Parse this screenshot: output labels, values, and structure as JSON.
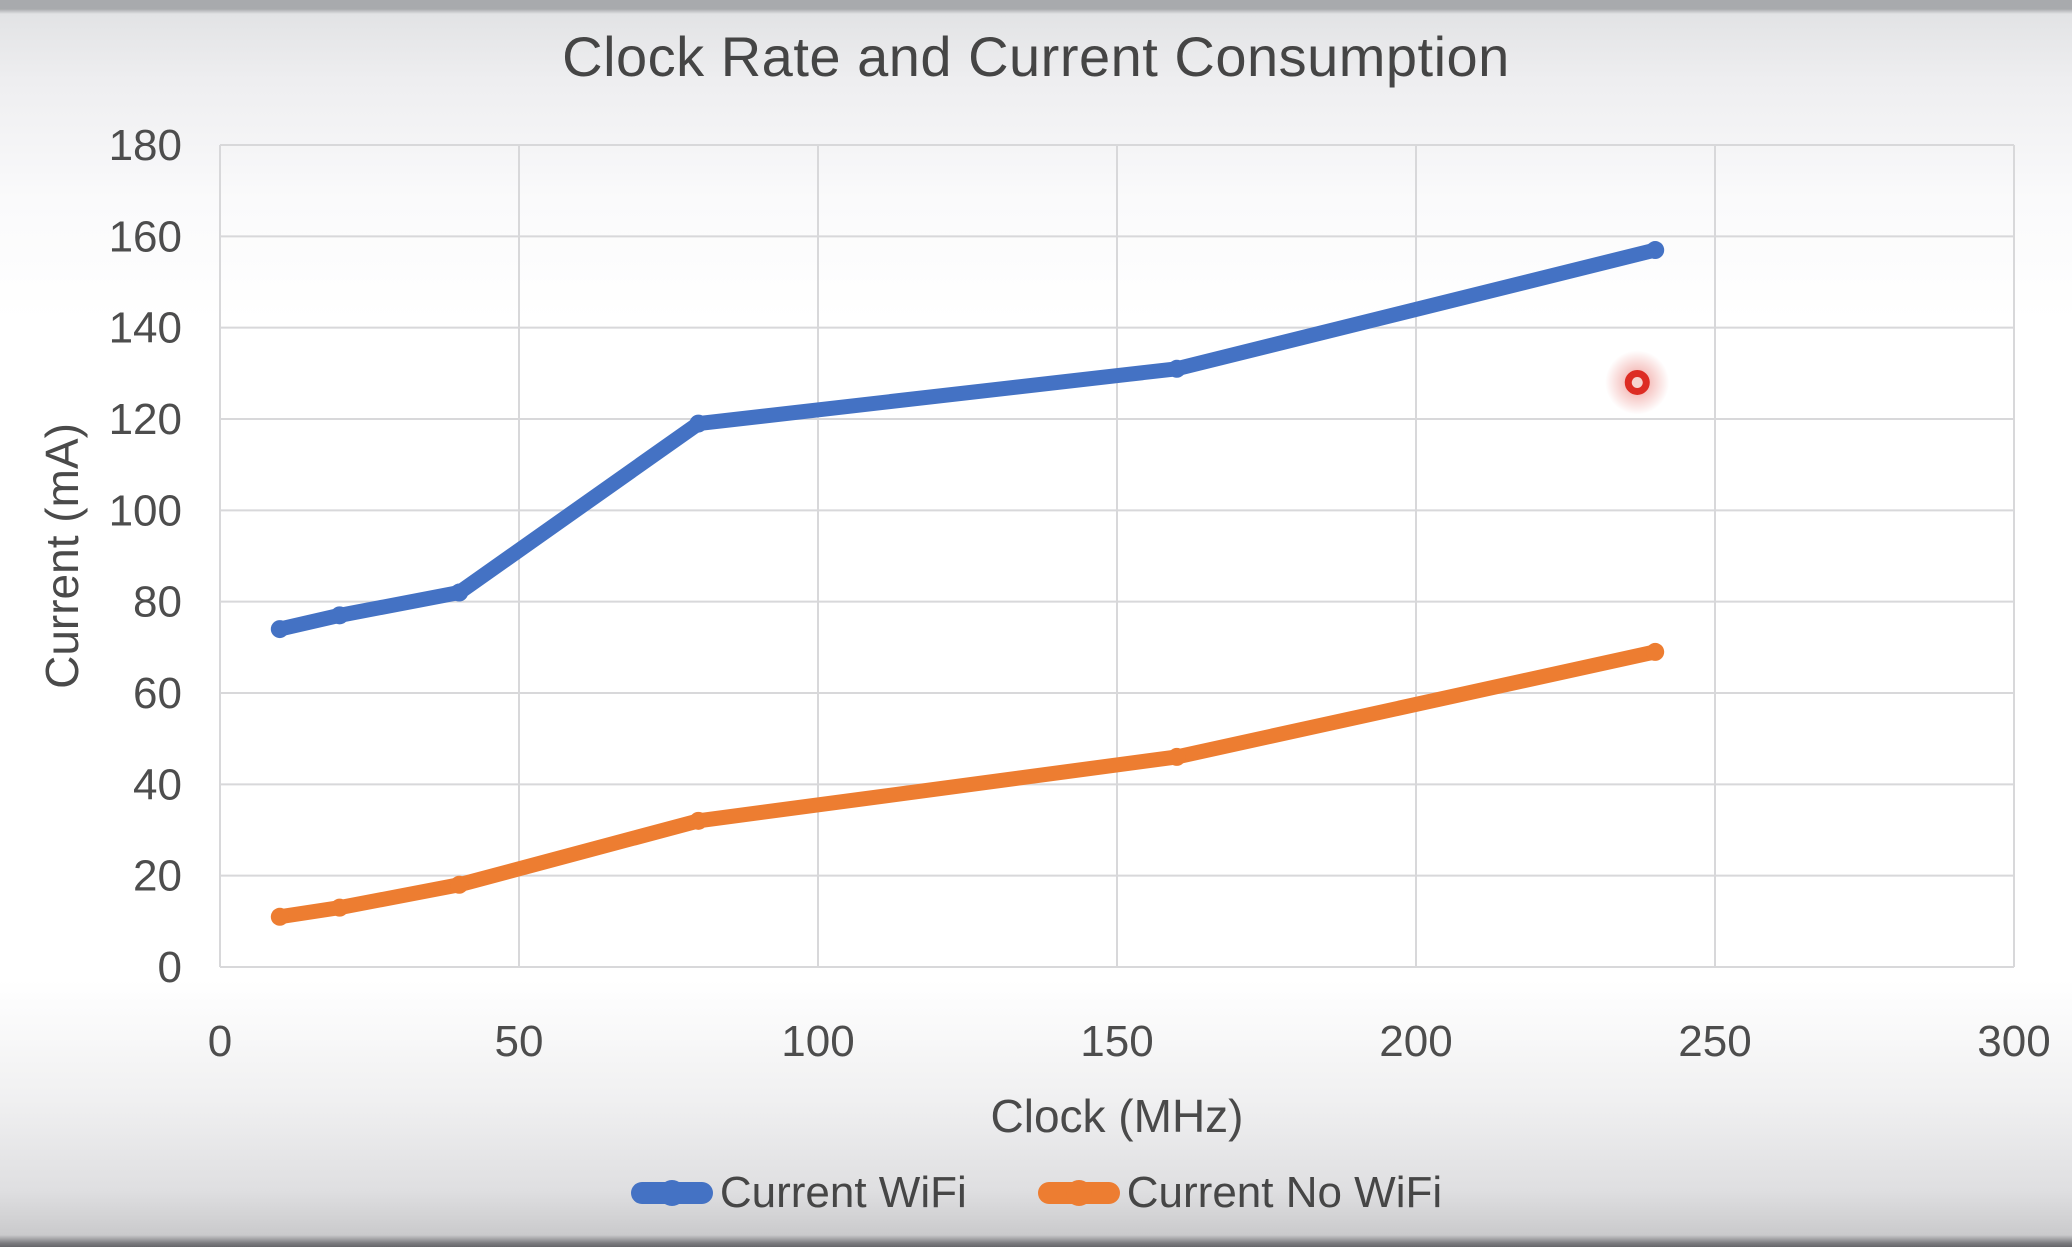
{
  "chart_data": {
    "type": "line",
    "title": "Clock Rate and Current Consumption",
    "xlabel": "Clock (MHz)",
    "ylabel": "Current (mA)",
    "xlim": [
      0,
      300
    ],
    "ylim": [
      0,
      180
    ],
    "x_ticks": [
      "0",
      "50",
      "100",
      "150",
      "200",
      "250",
      "300"
    ],
    "y_ticks": [
      "0",
      "20",
      "40",
      "60",
      "80",
      "100",
      "120",
      "140",
      "160",
      "180"
    ],
    "grid": true,
    "legend_position": "bottom-center",
    "series": [
      {
        "name": "Current WiFi",
        "color": "#4472C4",
        "x": [
          10,
          20,
          40,
          80,
          160,
          240
        ],
        "values": [
          74,
          77,
          82,
          119,
          131,
          157
        ]
      },
      {
        "name": "Current No WiFi",
        "color": "#ED7D31",
        "x": [
          10,
          20,
          40,
          80,
          160,
          240
        ],
        "values": [
          11,
          13,
          18,
          32,
          46,
          69
        ]
      }
    ],
    "annotations": [
      {
        "type": "laser-pointer-dot",
        "x": 237,
        "y": 128,
        "color": "#DD2C23"
      }
    ],
    "style": {
      "gridline_color": "#d8d8da",
      "text_color": "#4d4d4d",
      "line_width": 15
    }
  }
}
